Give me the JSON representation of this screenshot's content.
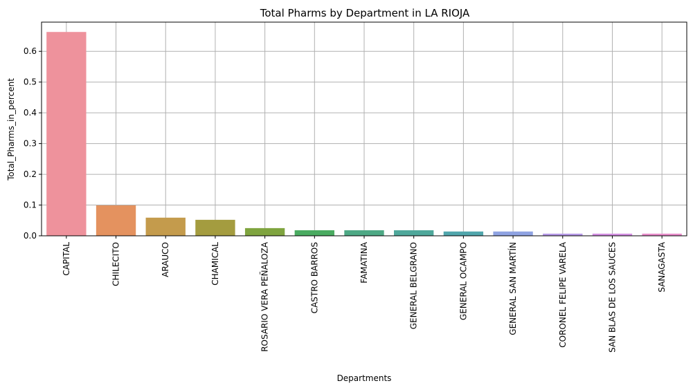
{
  "chart_data": {
    "type": "bar",
    "title": "Total Pharms by Department in LA RIOJA",
    "xlabel": "Departments",
    "ylabel": "Total_Pharms_in_percent",
    "ylim": [
      0,
      0.695
    ],
    "yticks": [
      "0.0",
      "0.1",
      "0.2",
      "0.3",
      "0.4",
      "0.5",
      "0.6"
    ],
    "grid": true,
    "categories": [
      "CAPITAL",
      "CHILECITO",
      "ARAUCO",
      "CHAMICAL",
      "ROSARIO VERA PEÑALOZA",
      "CASTRO BARROS",
      "FAMATINA",
      "GENERAL BELGRANO",
      "GENERAL OCAMPO",
      "GENERAL SAN MARTÍN",
      "CORONEL FELIPE VARELA",
      "SAN BLAS DE LOS SAUCES",
      "SANAGASTA"
    ],
    "values": [
      0.663,
      0.099,
      0.059,
      0.052,
      0.025,
      0.018,
      0.018,
      0.018,
      0.014,
      0.014,
      0.007,
      0.007,
      0.007
    ],
    "colors": [
      "#ee929c",
      "#e4925f",
      "#c49b4c",
      "#a49c3f",
      "#7fa43f",
      "#4aab61",
      "#4ea985",
      "#4fa89b",
      "#51a6ac",
      "#8fa3e2",
      "#b79ae8",
      "#d48fe3",
      "#e98dcb"
    ]
  }
}
